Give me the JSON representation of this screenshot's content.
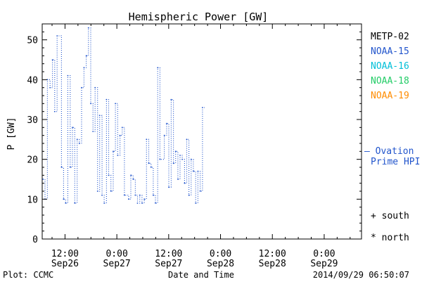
{
  "chart_data": {
    "type": "line",
    "title": "Hemispheric Power [GW]",
    "ylabel": "P [GW]",
    "xlabel": "Date and Time",
    "ylim": [
      0,
      54
    ],
    "yticks": [
      0,
      10,
      20,
      30,
      40,
      50
    ],
    "xticks": [
      {
        "x": 0.5,
        "time": "12:00",
        "date": "Sep26"
      },
      {
        "x": 1.0,
        "time": "0:00",
        "date": "Sep27"
      },
      {
        "x": 1.5,
        "time": "12:00",
        "date": "Sep27"
      },
      {
        "x": 2.0,
        "time": "0:00",
        "date": "Sep28"
      },
      {
        "x": 2.5,
        "time": "12:00",
        "date": "Sep28"
      },
      {
        "x": 3.0,
        "time": "0:00",
        "date": "Sep29"
      }
    ],
    "x_unit": "days after Sep26 0:00",
    "xlim": [
      0.28,
      3.36
    ],
    "grid": false,
    "legend": {
      "placement": "right",
      "entries": [
        {
          "name": "METP-02",
          "color": "#000000"
        },
        {
          "name": "NOAA-15",
          "color": "#2255cc"
        },
        {
          "name": "NOAA-16",
          "color": "#00bfd8"
        },
        {
          "name": "NOAA-18",
          "color": "#22cc66"
        },
        {
          "name": "NOAA-19",
          "color": "#ff8c00"
        }
      ],
      "ovation_line1": "— Ovation",
      "ovation_line2": "Prime HPI",
      "ovation_color": "#2255cc",
      "south_label": "+ south",
      "north_label": "* north"
    },
    "series": [
      {
        "name": "NOAA-15",
        "color": "#2255cc",
        "style": "dotted-step",
        "points": [
          [
            0.288,
            15
          ],
          [
            0.307,
            10
          ],
          [
            0.33,
            40
          ],
          [
            0.356,
            38
          ],
          [
            0.379,
            45
          ],
          [
            0.401,
            32
          ],
          [
            0.424,
            51
          ],
          [
            0.466,
            18
          ],
          [
            0.486,
            10
          ],
          [
            0.506,
            9
          ],
          [
            0.527,
            41
          ],
          [
            0.55,
            18
          ],
          [
            0.572,
            28
          ],
          [
            0.594,
            9
          ],
          [
            0.617,
            25
          ],
          [
            0.638,
            24
          ],
          [
            0.66,
            38
          ],
          [
            0.683,
            43
          ],
          [
            0.705,
            46
          ],
          [
            0.726,
            53
          ],
          [
            0.748,
            34
          ],
          [
            0.77,
            27
          ],
          [
            0.79,
            38
          ],
          [
            0.814,
            12
          ],
          [
            0.834,
            31
          ],
          [
            0.857,
            11
          ],
          [
            0.878,
            9
          ],
          [
            0.9,
            35
          ],
          [
            0.921,
            16
          ],
          [
            0.943,
            12
          ],
          [
            0.965,
            22
          ],
          [
            0.986,
            34
          ],
          [
            1.008,
            21
          ],
          [
            1.03,
            26
          ],
          [
            1.052,
            28
          ],
          [
            1.073,
            11
          ],
          [
            1.114,
            10
          ],
          [
            1.135,
            16
          ],
          [
            1.157,
            15
          ],
          [
            1.178,
            11
          ],
          [
            1.199,
            9
          ],
          [
            1.221,
            11
          ],
          [
            1.243,
            9
          ],
          [
            1.265,
            10
          ],
          [
            1.286,
            25
          ],
          [
            1.308,
            19
          ],
          [
            1.33,
            18
          ],
          [
            1.351,
            11
          ],
          [
            1.372,
            9
          ],
          [
            1.394,
            43
          ],
          [
            1.416,
            20
          ],
          [
            1.458,
            26
          ],
          [
            1.48,
            29
          ],
          [
            1.501,
            13
          ],
          [
            1.524,
            35
          ],
          [
            1.546,
            19
          ],
          [
            1.567,
            22
          ],
          [
            1.589,
            15
          ],
          [
            1.61,
            21
          ],
          [
            1.631,
            20
          ],
          [
            1.653,
            14
          ],
          [
            1.674,
            25
          ],
          [
            1.695,
            11
          ],
          [
            1.717,
            20
          ],
          [
            1.738,
            17
          ],
          [
            1.76,
            9
          ],
          [
            1.782,
            17
          ],
          [
            1.804,
            12
          ],
          [
            1.826,
            33
          ]
        ]
      }
    ],
    "footer": {
      "left": "Plot: CCMC",
      "right": "2014/09/29 06:50:07"
    }
  }
}
